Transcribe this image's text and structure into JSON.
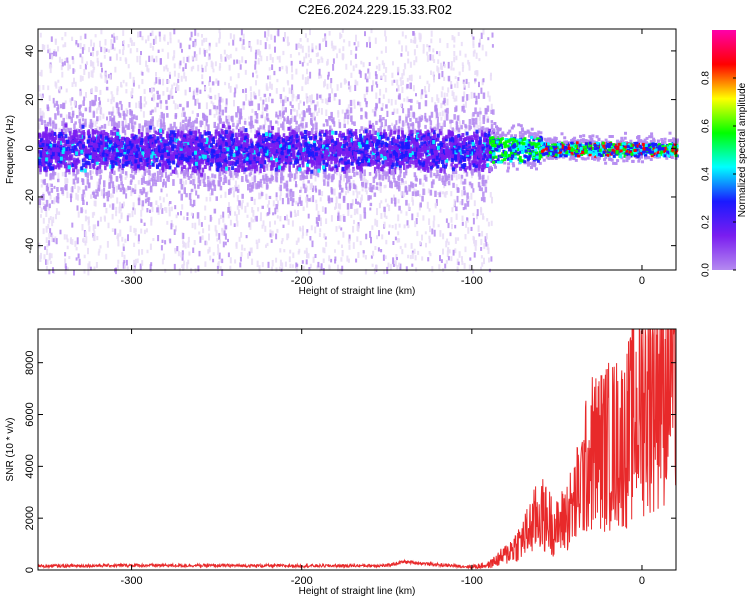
{
  "title": "C2E6.2024.229.15.33.R02",
  "chart_data": [
    {
      "type": "heatmap",
      "xlabel": "Height of straight line (km)",
      "ylabel": "Frequency (Hz)",
      "xlim": [
        -355,
        20
      ],
      "ylim": [
        -50,
        49
      ],
      "xticks": [
        -300,
        -200,
        -100,
        0
      ],
      "yticks": [
        -40,
        -20,
        0,
        20,
        40
      ],
      "grid": false,
      "colorbar": {
        "label": "Normalized spectral amplitude",
        "range": [
          0.0,
          1.0
        ],
        "ticks": [
          0.0,
          0.2,
          0.4,
          0.6,
          0.8
        ],
        "colormap": [
          "#e8dcf7",
          "#b48af0",
          "#7a1df0",
          "#1a1aff",
          "#00ffff",
          "#00ff00",
          "#ffff00",
          "#ff0000",
          "#ff00aa"
        ]
      },
      "description_values": {
        "band_center_hz": 0,
        "band_halfwidth_hz_left": 7,
        "band_halfwidth_hz_right": 3,
        "scatter_region_x": [
          -355,
          -88
        ],
        "scatter_region_y": [
          -50,
          49
        ],
        "high_amplitude_region_x": [
          -90,
          20
        ]
      }
    },
    {
      "type": "line",
      "xlabel": "Height of straight line (km)",
      "ylabel": "SNR (10 * v/v)",
      "xlim": [
        -355,
        20
      ],
      "ylim": [
        0,
        9300
      ],
      "xticks": [
        -300,
        -200,
        -100,
        0
      ],
      "yticks": [
        0,
        2000,
        4000,
        6000,
        8000
      ],
      "color": "#e8292a",
      "series": [
        {
          "x": [
            -355,
            -300,
            -250,
            -200,
            -150,
            -140,
            -120,
            -100,
            -90,
            -80,
            -70,
            -60,
            -50,
            -40,
            -30,
            -20,
            -10,
            0,
            10,
            20
          ],
          "y": [
            150,
            180,
            170,
            160,
            170,
            320,
            200,
            120,
            200,
            600,
            1200,
            2200,
            1600,
            2500,
            4500,
            4800,
            5000,
            6500,
            7500,
            8300
          ]
        }
      ]
    }
  ]
}
